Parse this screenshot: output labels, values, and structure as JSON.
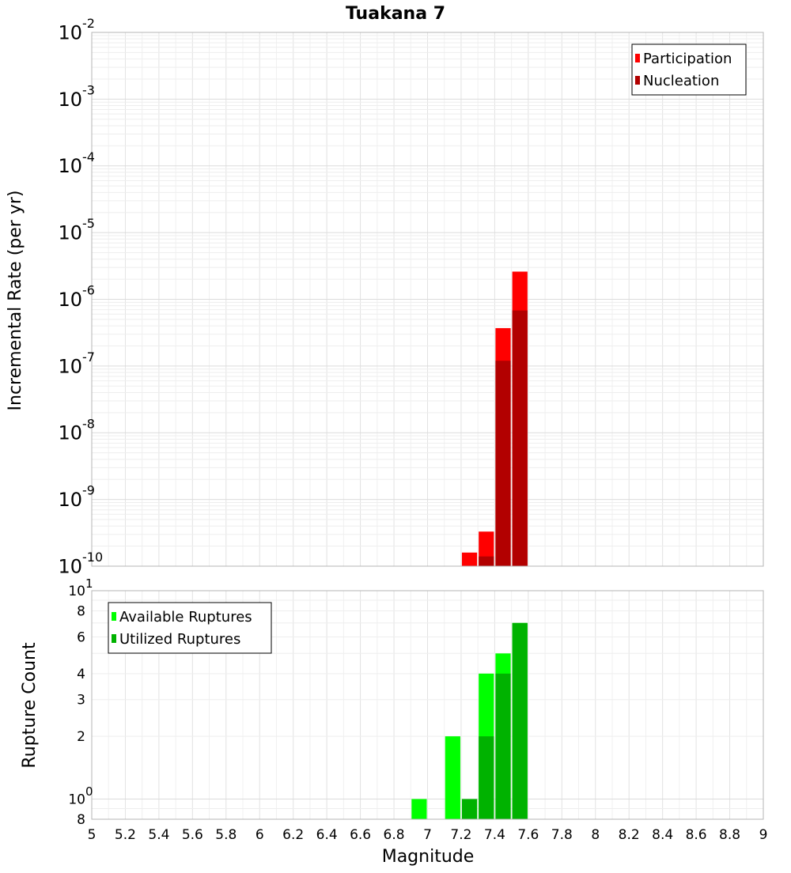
{
  "chart_data": [
    {
      "type": "bar",
      "title": "Tuakana 7",
      "ylabel": "Incremental Rate (per yr)",
      "xlabel": "",
      "y_scale": "log",
      "ylim": [
        1e-10,
        0.01
      ],
      "xlim": [
        5,
        9
      ],
      "bin_width": 0.1,
      "grid": true,
      "legend_position": "top-right",
      "y_ticks": [
        {
          "base": "10",
          "exp": "-10"
        },
        {
          "base": "10",
          "exp": "-9"
        },
        {
          "base": "10",
          "exp": "-8"
        },
        {
          "base": "10",
          "exp": "-7"
        },
        {
          "base": "10",
          "exp": "-6"
        },
        {
          "base": "10",
          "exp": "-5"
        },
        {
          "base": "10",
          "exp": "-4"
        },
        {
          "base": "10",
          "exp": "-3"
        },
        {
          "base": "10",
          "exp": "-2"
        }
      ],
      "series": [
        {
          "name": "Participation",
          "color": "#ff0000",
          "x": [
            7.25,
            7.35,
            7.45,
            7.55
          ],
          "values": [
            1.6e-10,
            3.3e-10,
            3.7e-07,
            2.6e-06
          ]
        },
        {
          "name": "Nucleation",
          "color": "#b20000",
          "x": [
            7.35,
            7.45,
            7.55
          ],
          "values": [
            1.4e-10,
            1.2e-07,
            6.8e-07
          ]
        }
      ]
    },
    {
      "type": "bar",
      "ylabel": "Rupture Count",
      "xlabel": "Magnitude",
      "y_scale": "log",
      "ylim": [
        0.8,
        10
      ],
      "xlim": [
        5,
        9
      ],
      "bin_width": 0.1,
      "grid": true,
      "legend_position": "top-left",
      "y_ticks": [
        {
          "value": 0.8,
          "label": "8",
          "exp": ""
        },
        {
          "value": 1,
          "label": "10",
          "exp": "0"
        },
        {
          "value": 2,
          "label": "2",
          "exp": ""
        },
        {
          "value": 3,
          "label": "3",
          "exp": ""
        },
        {
          "value": 4,
          "label": "4",
          "exp": ""
        },
        {
          "value": 6,
          "label": "6",
          "exp": ""
        },
        {
          "value": 8,
          "label": "8",
          "exp": ""
        },
        {
          "value": 10,
          "label": "10",
          "exp": "1"
        }
      ],
      "x_ticks": [
        "5",
        "5.2",
        "5.4",
        "5.6",
        "5.8",
        "6",
        "6.2",
        "6.4",
        "6.6",
        "6.8",
        "7",
        "7.2",
        "7.4",
        "7.6",
        "7.8",
        "8",
        "8.2",
        "8.4",
        "8.6",
        "8.8",
        "9"
      ],
      "series": [
        {
          "name": "Available Ruptures",
          "color": "#00ff00",
          "x": [
            6.95,
            7.15,
            7.25,
            7.35,
            7.45,
            7.55
          ],
          "values": [
            1,
            2,
            1,
            4,
            5,
            7
          ]
        },
        {
          "name": "Utilized Ruptures",
          "color": "#00b200",
          "x": [
            7.25,
            7.35,
            7.45,
            7.55
          ],
          "values": [
            1,
            2,
            4,
            7
          ]
        }
      ]
    }
  ]
}
